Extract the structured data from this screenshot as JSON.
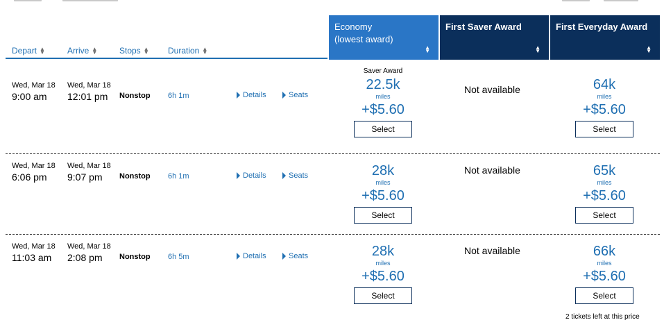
{
  "columns": {
    "depart": "Depart",
    "arrive": "Arrive",
    "stops": "Stops",
    "duration": "Duration"
  },
  "fares": {
    "economy": {
      "line1": "Economy",
      "line2": "(lowest award)"
    },
    "saver": "First Saver Award",
    "everyday": "First Everyday Award"
  },
  "select_label": "Select",
  "miles_unit": "miles",
  "details_label": "Details",
  "seats_label": "Seats",
  "flights": [
    {
      "depart_date": "Wed, Mar 18",
      "depart_time": "9:00 am",
      "arrive_date": "Wed, Mar 18",
      "arrive_time": "12:01 pm",
      "stops": "Nonstop",
      "duration": "6h 1m",
      "economy_tag": "Saver Award",
      "economy_miles": "22.5k",
      "economy_tax": "+$5.60",
      "saver": "Not available",
      "everyday_miles": "64k",
      "everyday_tax": "+$5.60"
    },
    {
      "depart_date": "Wed, Mar 18",
      "depart_time": "6:06 pm",
      "arrive_date": "Wed, Mar 18",
      "arrive_time": "9:07 pm",
      "stops": "Nonstop",
      "duration": "6h 1m",
      "economy_miles": "28k",
      "economy_tax": "+$5.60",
      "saver": "Not available",
      "everyday_miles": "65k",
      "everyday_tax": "+$5.60"
    },
    {
      "depart_date": "Wed, Mar 18",
      "depart_time": "11:03 am",
      "arrive_date": "Wed, Mar 18",
      "arrive_time": "2:08 pm",
      "stops": "Nonstop",
      "duration": "6h 5m",
      "economy_miles": "28k",
      "economy_tax": "+$5.60",
      "saver": "Not available",
      "everyday_miles": "66k",
      "everyday_tax": "+$5.60",
      "everyday_note": "2 tickets left at this price"
    }
  ],
  "colors": {
    "link_blue": "#1f6fb2",
    "economy_header": "#2a76c6",
    "first_header": "#0b2f5b"
  }
}
